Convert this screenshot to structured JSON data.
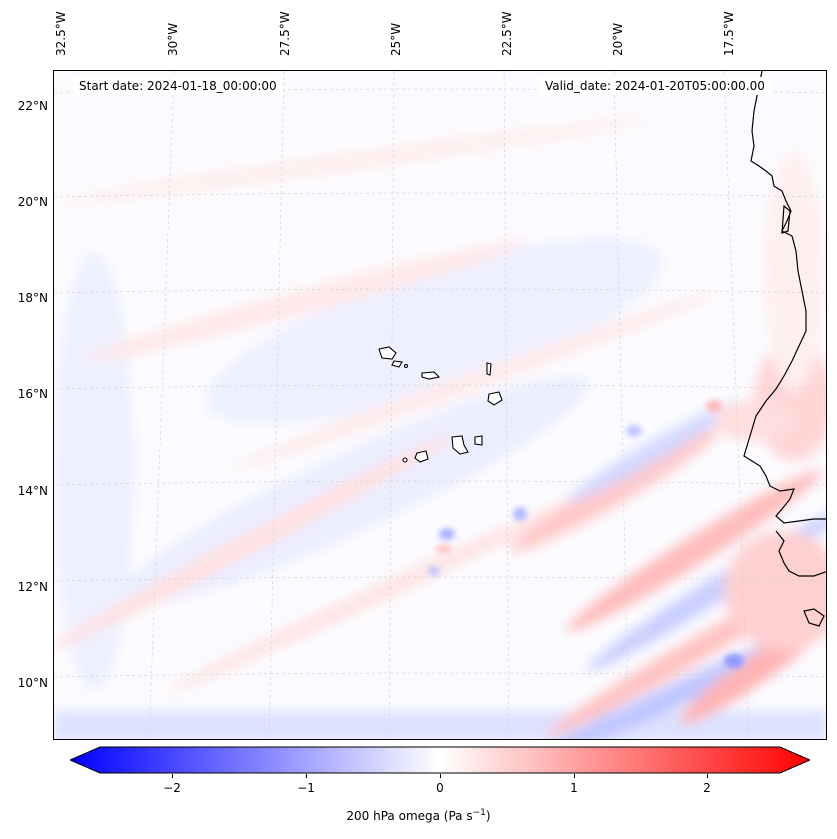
{
  "map": {
    "start_date": "Start date: 2024-01-18_00:00:00",
    "valid_date": "Valid_date: 2024-01-20T05:00:00.00",
    "lon_labels": [
      "32.5°W",
      "30°W",
      "27.5°W",
      "25°W",
      "22.5°W",
      "20°W",
      "17.5°W"
    ],
    "lat_labels": [
      "22°N",
      "20°N",
      "18°N",
      "16°N",
      "14°N",
      "12°N",
      "10°N"
    ],
    "variable": "200 hPa omega",
    "units": "Pa s",
    "units_exponent": "−1",
    "extent": {
      "lon_min": -33.0,
      "lon_max": -15.4,
      "lat_min": 8.9,
      "lat_max": 22.8
    }
  },
  "colorbar": {
    "ticks": [
      "−2",
      "−1",
      "0",
      "1",
      "2"
    ],
    "range": [
      -2.6,
      2.6
    ],
    "extend": "both",
    "colors": {
      "negative": "#0000ff",
      "zero": "#ffffff",
      "positive": "#ff0000"
    }
  },
  "colors": {
    "coastline": "#000000",
    "gridline": "#cccccc",
    "grid_tint": "#e7c6c6"
  }
}
